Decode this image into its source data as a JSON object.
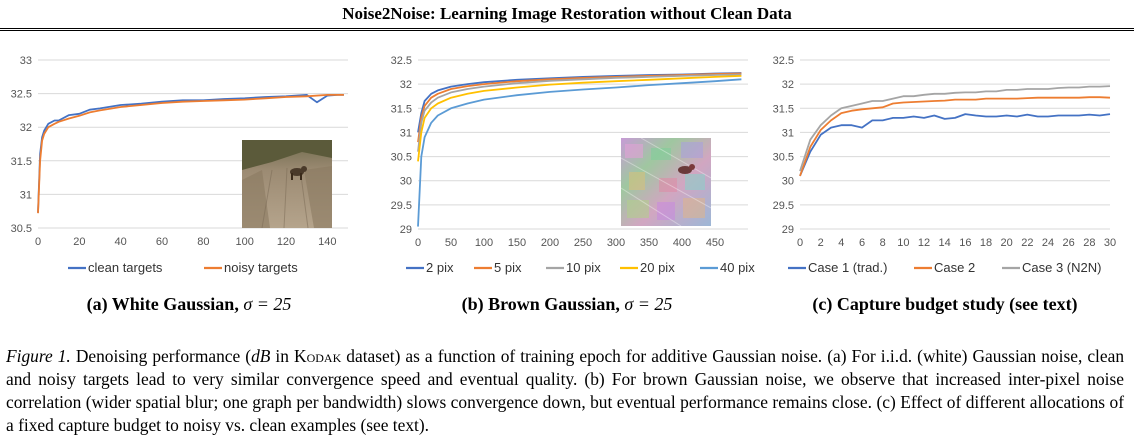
{
  "header": {
    "title": "Noise2Noise: Learning Image Restoration without Clean Data"
  },
  "colors": {
    "blue": "#4472C4",
    "orange": "#ED7D31",
    "gray": "#A5A5A5",
    "yellow": "#FFC000",
    "lightblue": "#5B9BD5",
    "grid": "#D9D9D9"
  },
  "subcaptions": {
    "a": {
      "text": "(a) White Gaussian, ",
      "sigma": "σ = 25"
    },
    "b": {
      "text": "(b) Brown Gaussian, ",
      "sigma": "σ = 25"
    },
    "c": {
      "text": "(c) Capture budget study (see text)"
    }
  },
  "caption": {
    "label": "Figure 1.",
    "part1": " Denoising performance (",
    "db": "dB",
    "part2": " in ",
    "kodak": "Kodak",
    "part3": " dataset) as a function of training epoch for additive Gaussian noise. (a) For i.i.d. (white) Gaussian noise, clean and noisy targets lead to very similar convergence speed and eventual quality. (b) For brown Gaussian noise, we observe that increased inter-pixel noise correlation (wider spatial blur; one graph per bandwidth) slows convergence down, but eventual performance remains close. (c) Effect of different allocations of a fixed capture budget to noisy vs. clean examples (see text)."
  },
  "chart_data": [
    {
      "type": "line",
      "title": "",
      "xlabel": "",
      "ylabel": "",
      "xlim": [
        0,
        150
      ],
      "ylim": [
        30.5,
        33
      ],
      "x_ticks": [
        "0",
        "20",
        "40",
        "60",
        "80",
        "100",
        "120",
        "140"
      ],
      "y_ticks": [
        "30.5",
        "31",
        "31.5",
        "32",
        "32.5",
        "33"
      ],
      "grid": true,
      "legend": "bottom",
      "series": [
        {
          "name": "clean targets",
          "color": "#4472C4",
          "x": [
            0,
            1,
            2,
            3,
            5,
            8,
            10,
            15,
            20,
            25,
            30,
            40,
            50,
            60,
            70,
            80,
            90,
            100,
            110,
            120,
            130,
            135,
            140,
            145,
            148
          ],
          "y": [
            30.73,
            31.6,
            31.85,
            31.95,
            32.05,
            32.1,
            32.1,
            32.18,
            32.2,
            32.26,
            32.28,
            32.33,
            32.35,
            32.38,
            32.4,
            32.4,
            32.42,
            32.43,
            32.45,
            32.46,
            32.48,
            32.37,
            32.47,
            32.48,
            32.48
          ]
        },
        {
          "name": "noisy targets",
          "color": "#ED7D31",
          "x": [
            0,
            1,
            2,
            3,
            5,
            8,
            10,
            15,
            20,
            25,
            30,
            40,
            50,
            60,
            70,
            80,
            90,
            100,
            110,
            120,
            130,
            140,
            145,
            148
          ],
          "y": [
            30.72,
            31.5,
            31.8,
            31.9,
            32.0,
            32.05,
            32.08,
            32.13,
            32.17,
            32.22,
            32.25,
            32.3,
            32.33,
            32.36,
            32.38,
            32.39,
            32.4,
            32.41,
            32.43,
            32.45,
            32.46,
            32.48,
            32.48,
            32.48
          ]
        }
      ]
    },
    {
      "type": "line",
      "title": "",
      "xlabel": "",
      "ylabel": "",
      "xlim": [
        0,
        500
      ],
      "ylim": [
        29,
        32.5
      ],
      "x_ticks": [
        "0",
        "50",
        "100",
        "150",
        "200",
        "250",
        "300",
        "350",
        "400",
        "450"
      ],
      "y_ticks": [
        "29",
        "29.5",
        "30",
        "30.5",
        "31",
        "31.5",
        "32",
        "32.5"
      ],
      "grid": true,
      "legend": "bottom",
      "series": [
        {
          "name": "2 pix",
          "color": "#4472C4",
          "x": [
            0,
            5,
            10,
            20,
            30,
            50,
            75,
            100,
            150,
            200,
            250,
            300,
            350,
            400,
            450,
            490
          ],
          "y": [
            31.0,
            31.4,
            31.65,
            31.8,
            31.87,
            31.95,
            32.0,
            32.04,
            32.09,
            32.12,
            32.15,
            32.17,
            32.19,
            32.2,
            32.22,
            32.23
          ]
        },
        {
          "name": "5 pix",
          "color": "#ED7D31",
          "x": [
            0,
            5,
            10,
            20,
            30,
            50,
            75,
            100,
            150,
            200,
            250,
            300,
            350,
            400,
            450,
            490
          ],
          "y": [
            30.8,
            31.3,
            31.55,
            31.72,
            31.8,
            31.9,
            31.96,
            32.0,
            32.06,
            32.1,
            32.13,
            32.15,
            32.17,
            32.19,
            32.21,
            32.22
          ]
        },
        {
          "name": "10 pix",
          "color": "#A5A5A5",
          "x": [
            0,
            5,
            10,
            20,
            30,
            50,
            75,
            100,
            150,
            200,
            250,
            300,
            350,
            400,
            450,
            490
          ],
          "y": [
            30.6,
            31.2,
            31.45,
            31.62,
            31.72,
            31.83,
            31.9,
            31.95,
            32.02,
            32.07,
            32.1,
            32.13,
            32.15,
            32.17,
            32.19,
            32.2
          ]
        },
        {
          "name": "20 pix",
          "color": "#FFC000",
          "x": [
            0,
            5,
            10,
            20,
            30,
            50,
            75,
            100,
            150,
            200,
            250,
            300,
            350,
            400,
            450,
            490
          ],
          "y": [
            30.4,
            31.0,
            31.3,
            31.5,
            31.6,
            31.72,
            31.8,
            31.86,
            31.93,
            31.99,
            32.03,
            32.06,
            32.09,
            32.12,
            32.15,
            32.17
          ]
        },
        {
          "name": "40 pix",
          "color": "#5B9BD5",
          "x": [
            0,
            5,
            10,
            20,
            30,
            50,
            75,
            100,
            150,
            200,
            250,
            300,
            350,
            400,
            450,
            490
          ],
          "y": [
            29.05,
            30.5,
            30.9,
            31.2,
            31.35,
            31.5,
            31.6,
            31.68,
            31.77,
            31.84,
            31.89,
            31.93,
            31.98,
            32.02,
            32.06,
            32.1
          ]
        }
      ]
    },
    {
      "type": "line",
      "title": "",
      "xlabel": "",
      "ylabel": "",
      "xlim": [
        0,
        30
      ],
      "ylim": [
        29,
        32.5
      ],
      "x_ticks": [
        "0",
        "2",
        "4",
        "6",
        "8",
        "10",
        "12",
        "14",
        "16",
        "18",
        "20",
        "22",
        "24",
        "26",
        "28",
        "30"
      ],
      "y_ticks": [
        "29",
        "29.5",
        "30",
        "30.5",
        "31",
        "31.5",
        "32",
        "32.5"
      ],
      "grid": true,
      "legend": "bottom",
      "series": [
        {
          "name": "Case 1 (trad.)",
          "color": "#4472C4",
          "x": [
            0,
            1,
            2,
            3,
            4,
            5,
            6,
            7,
            8,
            9,
            10,
            11,
            12,
            13,
            14,
            15,
            16,
            17,
            18,
            19,
            20,
            21,
            22,
            23,
            24,
            25,
            26,
            27,
            28,
            29,
            30
          ],
          "y": [
            30.1,
            30.6,
            30.95,
            31.1,
            31.15,
            31.15,
            31.1,
            31.25,
            31.25,
            31.3,
            31.3,
            31.33,
            31.3,
            31.35,
            31.28,
            31.3,
            31.38,
            31.35,
            31.33,
            31.33,
            31.35,
            31.33,
            31.37,
            31.33,
            31.33,
            31.35,
            31.35,
            31.35,
            31.37,
            31.35,
            31.38
          ]
        },
        {
          "name": "Case 2",
          "color": "#ED7D31",
          "x": [
            0,
            1,
            2,
            3,
            4,
            5,
            6,
            7,
            8,
            9,
            10,
            11,
            12,
            13,
            14,
            15,
            16,
            17,
            18,
            19,
            20,
            21,
            22,
            23,
            24,
            25,
            26,
            27,
            28,
            29,
            30
          ],
          "y": [
            30.1,
            30.7,
            31.05,
            31.25,
            31.4,
            31.45,
            31.48,
            31.5,
            31.52,
            31.6,
            31.62,
            31.63,
            31.64,
            31.65,
            31.66,
            31.68,
            31.68,
            31.68,
            31.7,
            31.7,
            31.7,
            31.7,
            31.71,
            31.72,
            31.72,
            31.72,
            31.72,
            31.72,
            31.73,
            31.73,
            31.72
          ]
        },
        {
          "name": "Case 3 (N2N)",
          "color": "#A5A5A5",
          "x": [
            0,
            1,
            2,
            3,
            4,
            5,
            6,
            7,
            8,
            9,
            10,
            11,
            12,
            13,
            14,
            15,
            16,
            17,
            18,
            19,
            20,
            21,
            22,
            23,
            24,
            25,
            26,
            27,
            28,
            29,
            30
          ],
          "y": [
            30.2,
            30.85,
            31.15,
            31.35,
            31.5,
            31.55,
            31.6,
            31.65,
            31.65,
            31.7,
            31.75,
            31.75,
            31.78,
            31.8,
            31.8,
            31.82,
            31.83,
            31.83,
            31.85,
            31.85,
            31.88,
            31.88,
            31.9,
            31.9,
            31.9,
            31.92,
            31.93,
            31.93,
            31.95,
            31.95,
            31.96
          ]
        }
      ]
    }
  ]
}
